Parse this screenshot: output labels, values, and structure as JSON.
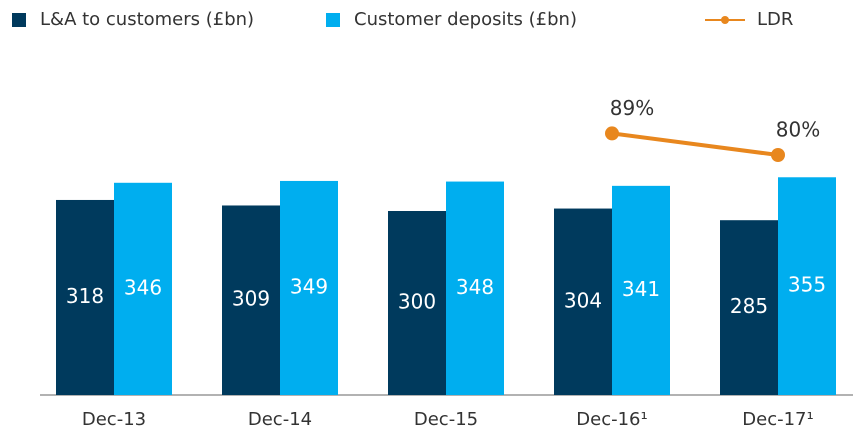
{
  "chart_data": {
    "type": "bar",
    "categories": [
      "Dec-13",
      "Dec-14",
      "Dec-15",
      "Dec-16¹",
      "Dec-17¹"
    ],
    "series": [
      {
        "name": "L&A to customers  (£bn)",
        "color": "#003a5d",
        "values": [
          318,
          309,
          300,
          304,
          285
        ]
      },
      {
        "name": "Customer deposits (£bn)",
        "color": "#00aeef",
        "values": [
          346,
          349,
          348,
          341,
          355
        ]
      },
      {
        "name": "LDR",
        "color": "#e8871e",
        "type": "line",
        "axis": "y2",
        "values": [
          null,
          null,
          null,
          89,
          80
        ],
        "value_labels": [
          null,
          null,
          null,
          "89%",
          "80%"
        ]
      }
    ],
    "ylim": [
      0,
      450
    ],
    "y2lim": [
      -20,
      95
    ],
    "grid": false,
    "legend": "top"
  }
}
